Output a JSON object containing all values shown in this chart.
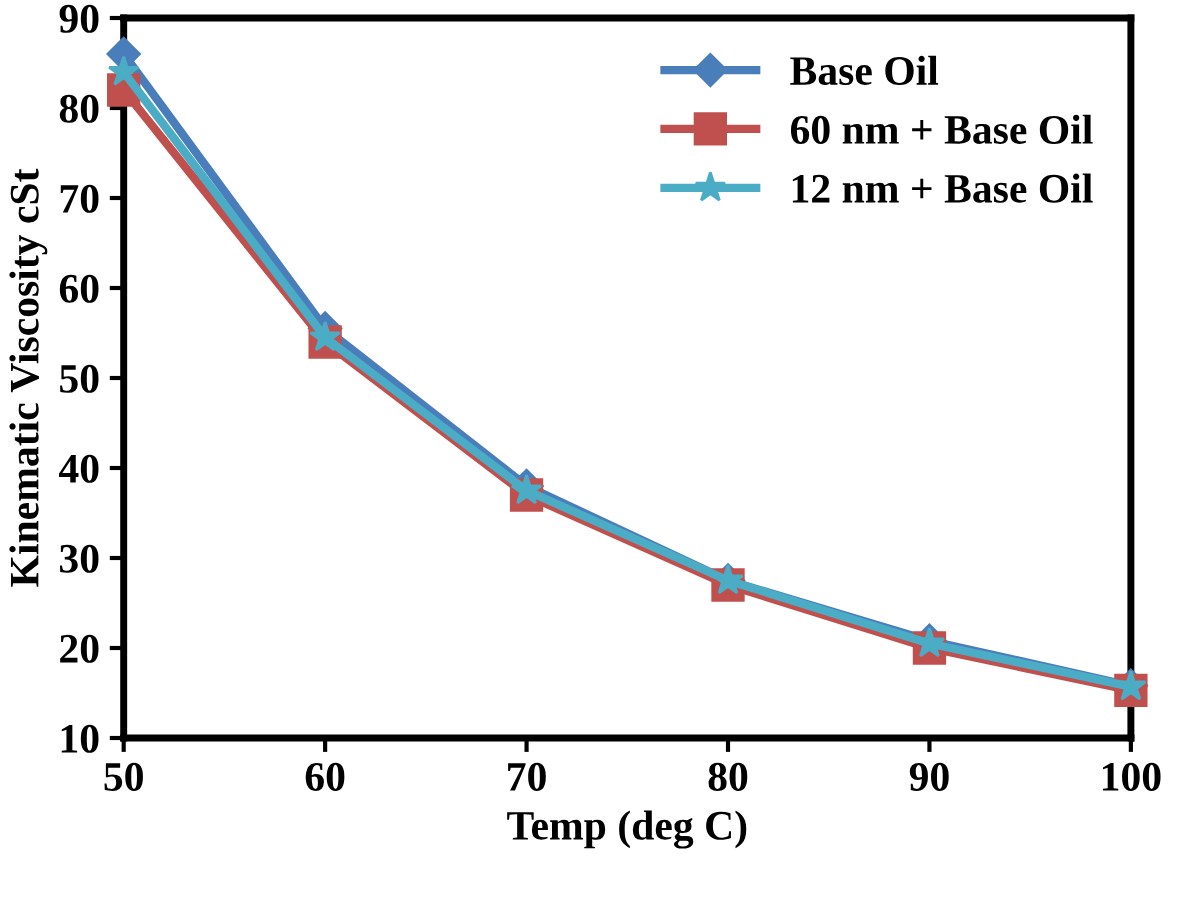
{
  "chart_data": {
    "type": "line",
    "xlabel": "Temp (deg C)",
    "ylabel": "Kinematic Viscosity cSt",
    "x": [
      50,
      60,
      70,
      80,
      90,
      100
    ],
    "series": [
      {
        "name": "Base Oil",
        "color": "#4a7ebb",
        "marker": "diamond",
        "values": [
          86,
          55.5,
          38,
          27.5,
          20.8,
          15.8
        ]
      },
      {
        "name": "60 nm + Base Oil",
        "color": "#c0504d",
        "marker": "square",
        "values": [
          82,
          54,
          37,
          27,
          20,
          15.3
        ]
      },
      {
        "name": "12 nm + Base Oil",
        "color": "#4bacc6",
        "marker": "star",
        "values": [
          84,
          54.5,
          37.5,
          27.5,
          20.5,
          15.7
        ]
      }
    ],
    "xlim": [
      50,
      100
    ],
    "xticks": [
      50,
      60,
      70,
      80,
      90,
      100
    ],
    "ylim": [
      10,
      90
    ],
    "yticks": [
      10,
      20,
      30,
      40,
      50,
      60,
      70,
      80,
      90
    ],
    "grid": false,
    "legend": "top right"
  }
}
